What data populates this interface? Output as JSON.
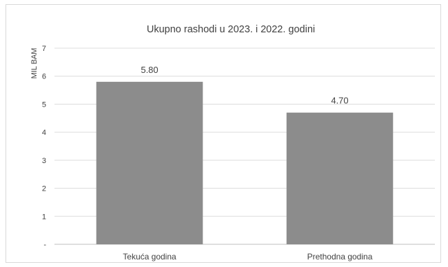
{
  "chart_data": {
    "type": "bar",
    "title": "Ukupno rashodi u 2023. i 2022. godini",
    "ylabel": "MIL BAM",
    "xlabel": "",
    "categories": [
      "Tekuća godina",
      "Prethodna godina"
    ],
    "values": [
      5.8,
      4.7
    ],
    "value_labels": [
      "5.80",
      "4.70"
    ],
    "ylim": [
      0,
      7
    ],
    "yticks": [
      "-",
      "1",
      "2",
      "3",
      "4",
      "5",
      "6",
      "7"
    ],
    "grid": true,
    "legend": "none",
    "colors": {
      "bar": "#8c8c8c",
      "grid": "#dcdcdc",
      "text": "#404040",
      "axis": "#bfbfbf"
    }
  }
}
